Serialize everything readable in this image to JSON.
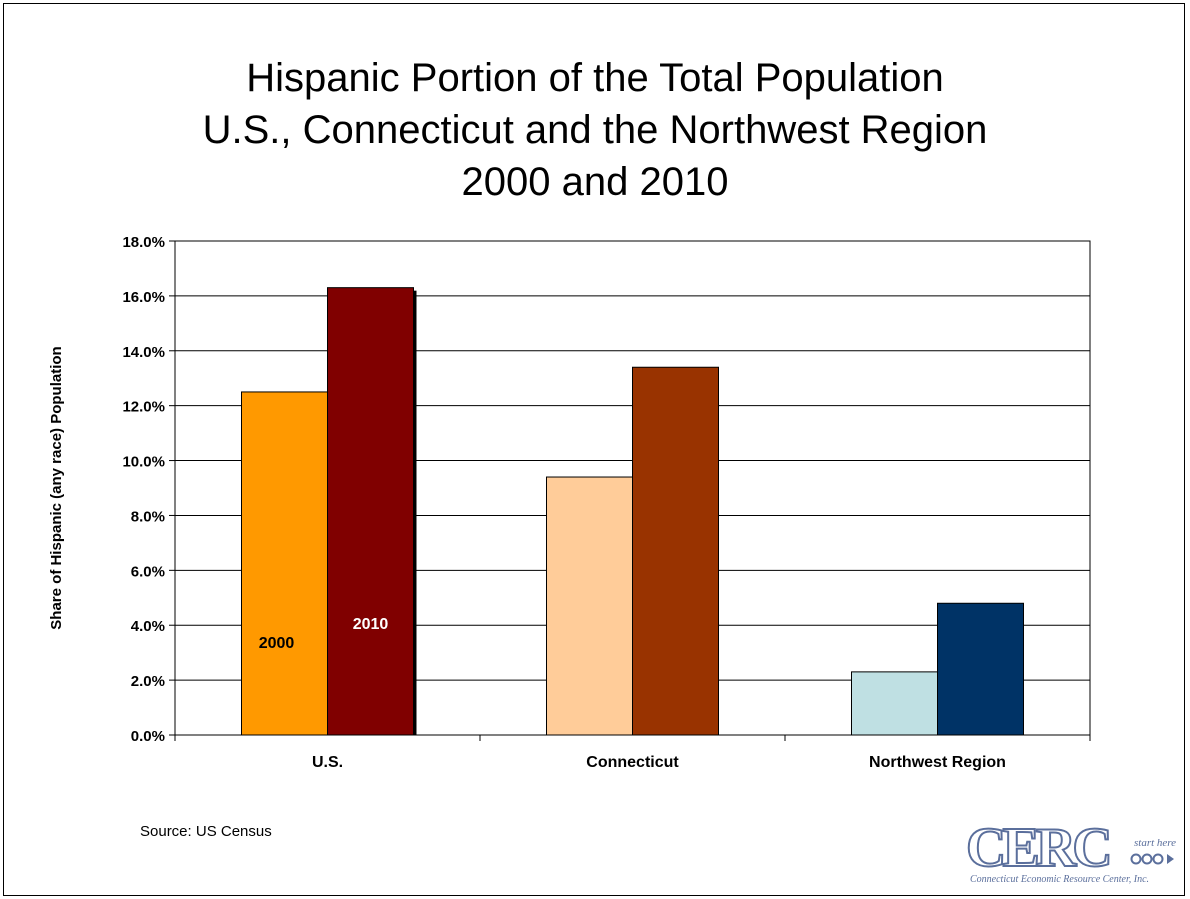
{
  "chart_data": {
    "type": "bar",
    "title": "Hispanic Portion of the Total Population",
    "title_lines": [
      "Hispanic Portion of the Total Population",
      "U.S., Connecticut and the Northwest Region",
      "2000 and 2010"
    ],
    "xlabel": "",
    "ylabel": "Share of Hispanic (any race) Population",
    "ylim": [
      0,
      18
    ],
    "yticks": [
      0,
      2,
      4,
      6,
      8,
      10,
      12,
      14,
      16,
      18
    ],
    "ytick_labels": [
      "0.0%",
      "2.0%",
      "4.0%",
      "6.0%",
      "8.0%",
      "10.0%",
      "12.0%",
      "14.0%",
      "16.0%",
      "18.0%"
    ],
    "grid": true,
    "categories": [
      "U.S.",
      "Connecticut",
      "Northwest Region"
    ],
    "series": [
      {
        "name": "2000",
        "values": [
          12.5,
          9.4,
          2.3
        ],
        "colors": [
          "#ff9900",
          "#ffcc99",
          "#bfe0e3"
        ]
      },
      {
        "name": "2010",
        "values": [
          16.3,
          13.4,
          4.8
        ],
        "colors": [
          "#800000",
          "#993300",
          "#003366"
        ]
      }
    ],
    "bar_labels": [
      {
        "category_index": 0,
        "series_index": 0,
        "text": "2000",
        "color": "#000000"
      },
      {
        "category_index": 0,
        "series_index": 1,
        "text": "2010",
        "color": "#ffffff"
      }
    ]
  },
  "source": "Source:  US Census",
  "logo": {
    "text": "CERC",
    "tagline": "start here",
    "caption": "Connecticut Economic Resource Center, Inc.",
    "color": "#5b6f9c"
  }
}
